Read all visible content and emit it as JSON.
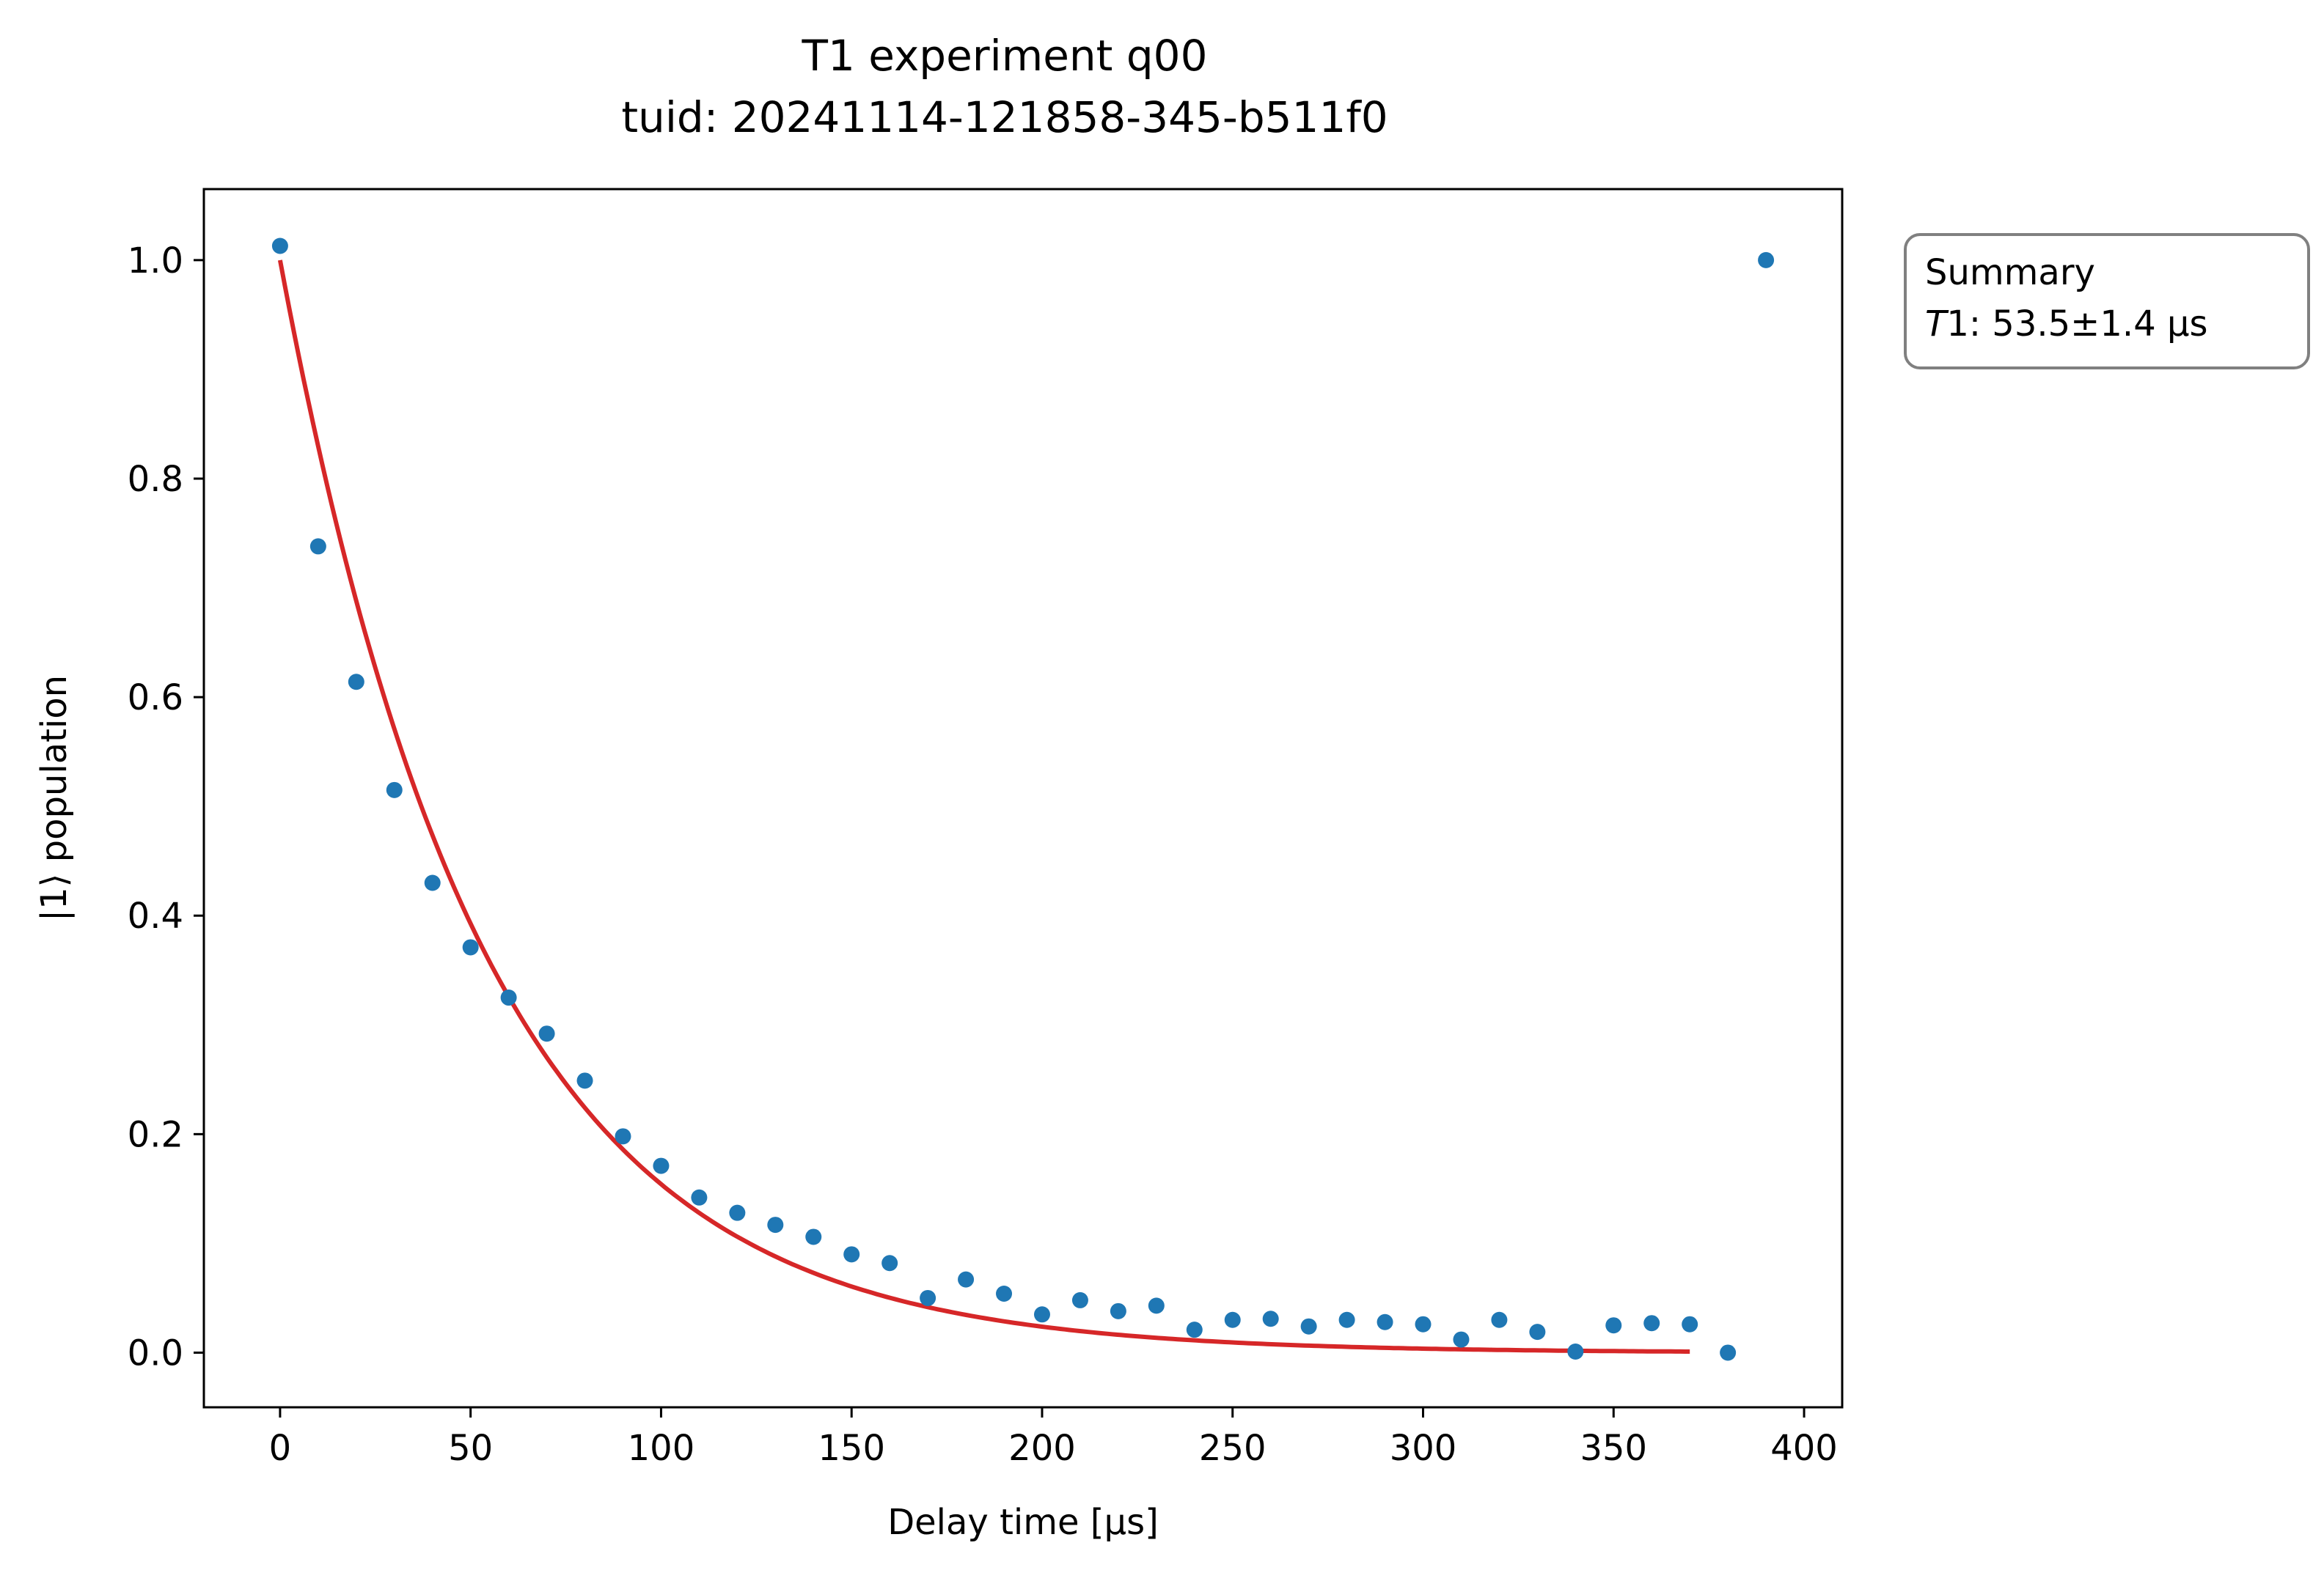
{
  "chart_data": {
    "type": "scatter",
    "title": "T1 experiment q00",
    "subtitle": "tuid: 20241114-121858-345-b511f0",
    "xlabel": "Delay time [µs]",
    "ylabel": "|1⟩ population",
    "xlim": [
      -20,
      410
    ],
    "ylim": [
      -0.05,
      1.065
    ],
    "xticks": [
      0,
      50,
      100,
      150,
      200,
      250,
      300,
      350,
      400
    ],
    "xtick_labels": [
      "0",
      "50",
      "100",
      "150",
      "200",
      "250",
      "300",
      "350",
      "400"
    ],
    "yticks": [
      0.0,
      0.2,
      0.4,
      0.6,
      0.8,
      1.0
    ],
    "ytick_labels": [
      "0.0",
      "0.2",
      "0.4",
      "0.6",
      "0.8",
      "1.0"
    ],
    "grid": false,
    "series": [
      {
        "kind": "scatter",
        "color": "#1f77b4",
        "x": [
          0,
          10,
          20,
          30,
          40,
          50,
          60,
          70,
          80,
          90,
          100,
          110,
          120,
          130,
          140,
          150,
          160,
          170,
          180,
          190,
          200,
          210,
          220,
          230,
          240,
          250,
          260,
          270,
          280,
          290,
          300,
          310,
          320,
          330,
          340,
          350,
          360,
          370,
          380,
          390
        ],
        "y": [
          1.013,
          0.738,
          0.614,
          0.515,
          0.43,
          0.371,
          0.325,
          0.292,
          0.249,
          0.198,
          0.171,
          0.142,
          0.128,
          0.117,
          0.106,
          0.09,
          0.082,
          0.05,
          0.067,
          0.054,
          0.035,
          0.048,
          0.038,
          0.043,
          0.021,
          0.03,
          0.031,
          0.024,
          0.03,
          0.028,
          0.026,
          0.012,
          0.03,
          0.019,
          0.001,
          0.025,
          0.027,
          0.026,
          0.0,
          1.0
        ]
      },
      {
        "kind": "fit",
        "color": "#d62728",
        "model": "exponential decay",
        "amplitude": 1.0,
        "t1": 53.5,
        "offset": 0.0,
        "x_range": [
          0,
          370
        ]
      }
    ],
    "summary_box": {
      "heading": "Summary",
      "t1_symbol": "T",
      "t1_label_suffix": "1: 53.5±1.4 µs",
      "placement": "outside-right-top"
    }
  }
}
